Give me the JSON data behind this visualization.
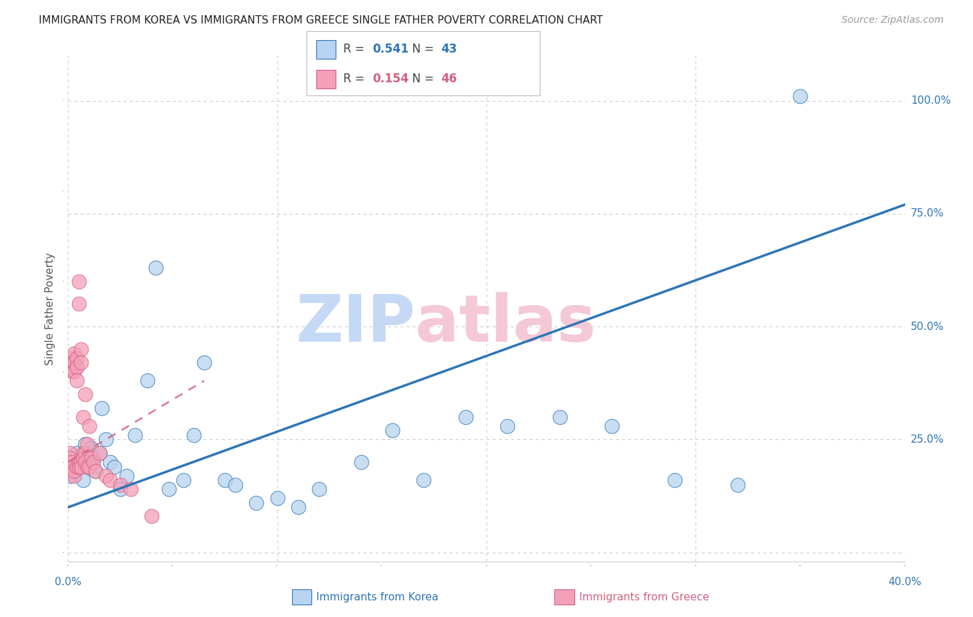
{
  "title": "IMMIGRANTS FROM KOREA VS IMMIGRANTS FROM GREECE SINGLE FATHER POVERTY CORRELATION CHART",
  "source": "Source: ZipAtlas.com",
  "ylabel": "Single Father Poverty",
  "xlim": [
    0.0,
    0.4
  ],
  "ylim": [
    -0.02,
    1.1
  ],
  "korea_R": 0.541,
  "korea_N": 43,
  "greece_R": 0.154,
  "greece_N": 46,
  "korea_color": "#b8d4f0",
  "korea_line_color": "#2e75b6",
  "greece_color": "#f4a0b8",
  "greece_line_color": "#d46080",
  "background_color": "#ffffff",
  "grid_color": "#cccccc",
  "korea_x": [
    0.001,
    0.002,
    0.003,
    0.004,
    0.005,
    0.006,
    0.007,
    0.008,
    0.009,
    0.01,
    0.011,
    0.012,
    0.013,
    0.015,
    0.016,
    0.018,
    0.02,
    0.022,
    0.025,
    0.028,
    0.032,
    0.038,
    0.042,
    0.048,
    0.055,
    0.06,
    0.065,
    0.075,
    0.08,
    0.09,
    0.1,
    0.11,
    0.12,
    0.14,
    0.155,
    0.17,
    0.19,
    0.21,
    0.235,
    0.26,
    0.29,
    0.32,
    0.35
  ],
  "korea_y": [
    0.17,
    0.2,
    0.18,
    0.22,
    0.19,
    0.21,
    0.16,
    0.24,
    0.2,
    0.19,
    0.23,
    0.21,
    0.18,
    0.22,
    0.32,
    0.25,
    0.2,
    0.19,
    0.14,
    0.17,
    0.26,
    0.38,
    0.63,
    0.14,
    0.16,
    0.26,
    0.42,
    0.16,
    0.15,
    0.11,
    0.12,
    0.1,
    0.14,
    0.2,
    0.27,
    0.16,
    0.3,
    0.28,
    0.3,
    0.28,
    0.16,
    0.15,
    1.01
  ],
  "greece_x": [
    0.001,
    0.001,
    0.001,
    0.001,
    0.001,
    0.002,
    0.002,
    0.002,
    0.002,
    0.002,
    0.003,
    0.003,
    0.003,
    0.003,
    0.003,
    0.004,
    0.004,
    0.004,
    0.004,
    0.005,
    0.005,
    0.005,
    0.005,
    0.006,
    0.006,
    0.006,
    0.006,
    0.007,
    0.007,
    0.007,
    0.008,
    0.008,
    0.008,
    0.009,
    0.009,
    0.01,
    0.01,
    0.011,
    0.012,
    0.013,
    0.015,
    0.018,
    0.02,
    0.025,
    0.03,
    0.04
  ],
  "greece_y": [
    0.2,
    0.19,
    0.22,
    0.21,
    0.18,
    0.43,
    0.41,
    0.4,
    0.19,
    0.2,
    0.44,
    0.42,
    0.4,
    0.17,
    0.18,
    0.43,
    0.41,
    0.38,
    0.19,
    0.6,
    0.55,
    0.2,
    0.19,
    0.45,
    0.42,
    0.2,
    0.19,
    0.3,
    0.22,
    0.21,
    0.35,
    0.22,
    0.2,
    0.24,
    0.19,
    0.28,
    0.19,
    0.21,
    0.2,
    0.18,
    0.22,
    0.17,
    0.16,
    0.15,
    0.14,
    0.08
  ],
  "ytick_values": [
    0.0,
    0.25,
    0.5,
    0.75,
    1.0
  ],
  "ytick_labels": [
    "",
    "25.0%",
    "50.0%",
    "75.0%",
    "100.0%"
  ],
  "xtick_values": [
    0.0,
    0.1,
    0.2,
    0.3,
    0.4
  ],
  "xtick_labels": [
    "0.0%",
    "",
    "",
    "",
    "40.0%"
  ],
  "korea_line_x": [
    0.0,
    0.4
  ],
  "korea_line_y": [
    0.1,
    0.77
  ],
  "greece_line_x": [
    0.0,
    0.065
  ],
  "greece_line_y": [
    0.2,
    0.38
  ]
}
